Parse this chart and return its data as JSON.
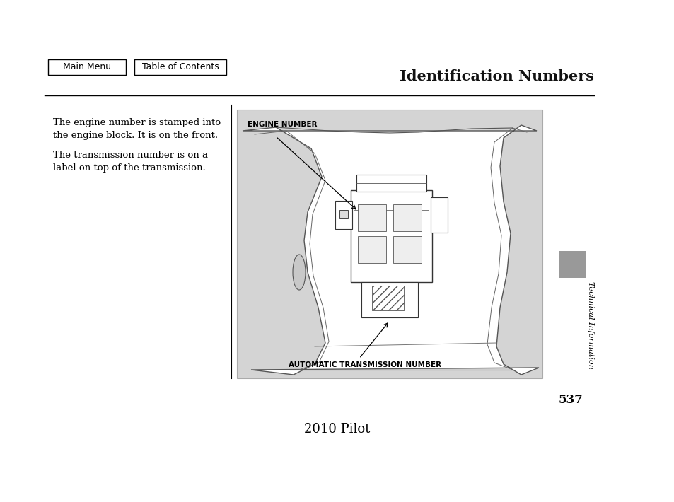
{
  "page_bg": "#ffffff",
  "title": "Identification Numbers",
  "title_fontsize": 15,
  "nav_buttons": [
    "Main Menu",
    "Table of Contents"
  ],
  "body_text_1": "The engine number is stamped into\nthe engine block. It is on the front.",
  "body_text_2": "The transmission number is on a\nlabel on top of the transmission.",
  "body_text_fontsize": 9.5,
  "diagram_bg": "#d4d4d4",
  "engine_label": "ENGINE NUMBER",
  "transmission_label": "AUTOMATIC TRANSMISSION NUMBER",
  "label_fontsize": 7.5,
  "right_sidebar_color": "#999999",
  "sidebar_text": "Technical Information",
  "sidebar_text_fontsize": 8,
  "page_number": "537",
  "footer_text": "2010 Pilot",
  "footer_fontsize": 13
}
